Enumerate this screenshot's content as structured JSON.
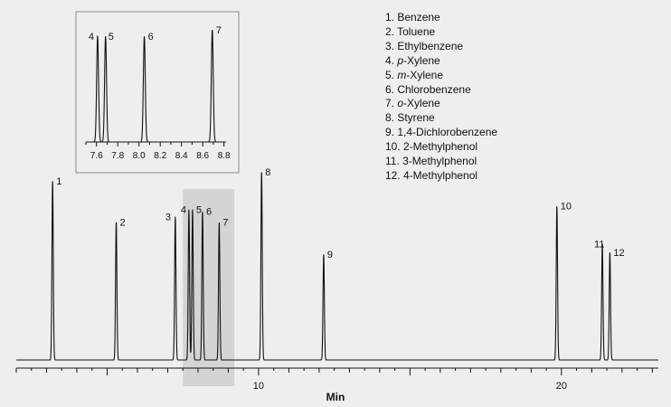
{
  "chart_data": {
    "type": "line",
    "xlabel": "Min",
    "xlim": [
      2.0,
      23.2
    ],
    "major_ticks": [
      10,
      20
    ],
    "tick_labels": [
      "10",
      "20"
    ],
    "ylim": [
      0,
      100
    ],
    "highlight_range": [
      7.5,
      9.2
    ],
    "peaks": [
      {
        "label": "1",
        "x": 3.2,
        "y": 100
      },
      {
        "label": "2",
        "x": 5.3,
        "y": 77
      },
      {
        "label": "3",
        "x": 7.25,
        "y": 80
      },
      {
        "label": "4",
        "x": 7.7,
        "y": 84
      },
      {
        "label": "5",
        "x": 7.82,
        "y": 84
      },
      {
        "label": "6",
        "x": 8.15,
        "y": 83
      },
      {
        "label": "7",
        "x": 8.7,
        "y": 77
      },
      {
        "label": "8",
        "x": 10.1,
        "y": 105
      },
      {
        "label": "9",
        "x": 12.15,
        "y": 59
      },
      {
        "label": "10",
        "x": 19.85,
        "y": 86
      },
      {
        "label": "11",
        "x": 21.35,
        "y": 65
      },
      {
        "label": "12",
        "x": 21.6,
        "y": 60
      }
    ],
    "inset": {
      "xlim": [
        7.5,
        8.82
      ],
      "ticks": [
        7.6,
        7.8,
        8.0,
        8.2,
        8.4,
        8.6,
        8.8
      ],
      "tick_labels": [
        "7.6",
        "7.8",
        "8.0",
        "8.2",
        "8.4",
        "8.6",
        "8.8"
      ],
      "peaks": [
        {
          "label": "4",
          "x": 7.61,
          "y": 100
        },
        {
          "label": "5",
          "x": 7.685,
          "y": 100
        },
        {
          "label": "6",
          "x": 8.05,
          "y": 100
        },
        {
          "label": "7",
          "x": 8.69,
          "y": 106
        }
      ]
    },
    "legend": [
      {
        "num": "1.",
        "prefix": "",
        "prefix_italic": "",
        "name": "Benzene"
      },
      {
        "num": "2.",
        "prefix": "",
        "prefix_italic": "",
        "name": "Toluene"
      },
      {
        "num": "3.",
        "prefix": "",
        "prefix_italic": "",
        "name": "Ethylbenzene"
      },
      {
        "num": "4.",
        "prefix_italic": "p",
        "name": "-Xylene"
      },
      {
        "num": "5.",
        "prefix_italic": "m",
        "name": "-Xylene"
      },
      {
        "num": "6.",
        "prefix_italic": "",
        "name": "Chlorobenzene"
      },
      {
        "num": "7.",
        "prefix_italic": "o",
        "name": "-Xylene"
      },
      {
        "num": "8.",
        "prefix_italic": "",
        "name": "Styrene"
      },
      {
        "num": "9.",
        "prefix_italic": "",
        "name": "1,4-Dichlorobenzene"
      },
      {
        "num": "10.",
        "prefix_italic": "",
        "name": "2-Methylphenol"
      },
      {
        "num": "11.",
        "prefix_italic": "",
        "name": "3-Methylphenol"
      },
      {
        "num": "12.",
        "prefix_italic": "",
        "name": "4-Methylphenol"
      }
    ],
    "colors": {
      "background": "#eeeeef",
      "trace": "#111111",
      "highlight": "#d4d4d6",
      "inset_border": "#8a8a8a"
    }
  }
}
